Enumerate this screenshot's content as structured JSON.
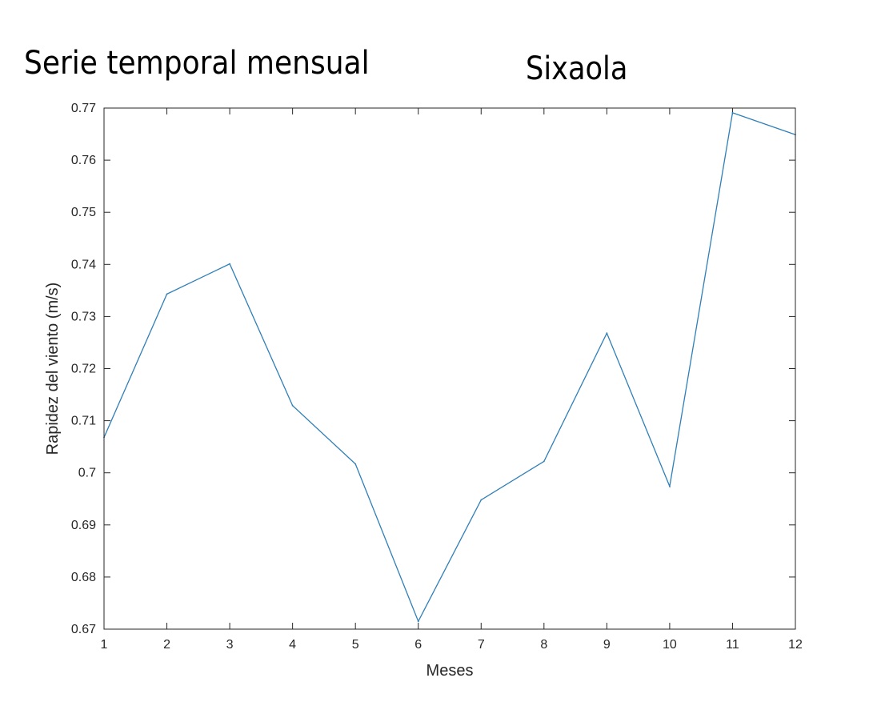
{
  "titles": {
    "left": "Serie temporal mensual",
    "right": "Sixaola"
  },
  "chart_data": {
    "type": "line",
    "title": "Serie temporal mensual",
    "subtitle": "Sixaola",
    "xlabel": "Meses",
    "ylabel": "Rapidez del viento (m/s)",
    "xlim": [
      1,
      12
    ],
    "ylim": [
      0.67,
      0.77
    ],
    "xticks": [
      1,
      2,
      3,
      4,
      5,
      6,
      7,
      8,
      9,
      10,
      11,
      12
    ],
    "yticks": [
      0.67,
      0.68,
      0.69,
      0.7,
      0.71,
      0.72,
      0.73,
      0.74,
      0.75,
      0.76,
      0.77
    ],
    "ytick_labels": [
      "0.67",
      "0.68",
      "0.69",
      "0.7",
      "0.71",
      "0.72",
      "0.73",
      "0.74",
      "0.75",
      "0.76",
      "0.77"
    ],
    "grid": false,
    "line_color": "#2f7fb8",
    "series": [
      {
        "x": [
          1,
          2,
          3,
          4,
          5,
          6,
          7,
          8,
          9,
          10,
          11,
          12
        ],
        "values": [
          0.7068,
          0.7343,
          0.7401,
          0.7129,
          0.7017,
          0.6715,
          0.6948,
          0.7022,
          0.7268,
          0.6974,
          0.7691,
          0.7649
        ]
      }
    ]
  }
}
